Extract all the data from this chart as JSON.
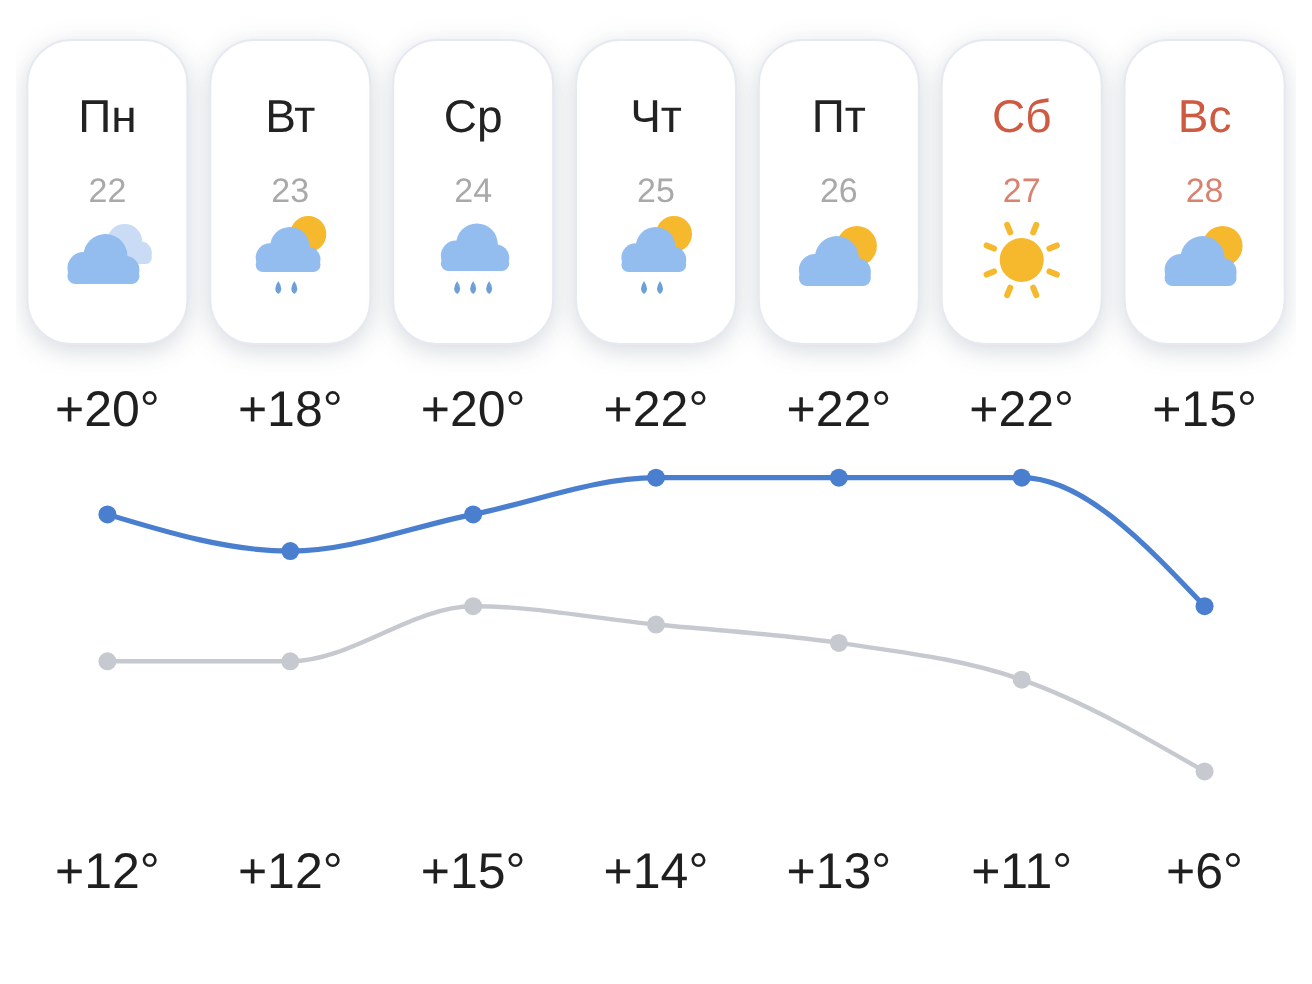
{
  "chart_data": {
    "type": "line",
    "categories": [
      "Пн\n22",
      "Вт\n23",
      "Ср\n24",
      "Чт\n25",
      "Пт\n26",
      "Сб\n27",
      "Вс\n28"
    ],
    "series": [
      {
        "color": "#4a7fcf",
        "values": [
          20,
          18,
          20,
          22,
          22,
          22,
          15
        ],
        "value_labels": [
          "+20°",
          "+18°",
          "+20°",
          "+22°",
          "+22°",
          "+22°",
          "+15°"
        ]
      },
      {
        "color": "#c6c9cf",
        "values": [
          12,
          12,
          15,
          14,
          13,
          11,
          6
        ],
        "value_labels": [
          "+12°",
          "+12°",
          "+15°",
          "+14°",
          "+13°",
          "+11°",
          "+6°"
        ]
      }
    ],
    "marker": "circle",
    "tick_labels": "x"
  }
}
